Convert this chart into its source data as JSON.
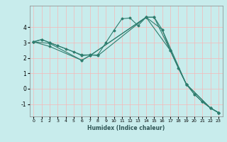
{
  "xlabel": "Humidex (Indice chaleur)",
  "ylabel": "",
  "bg_color": "#c8ecec",
  "line_color": "#2e7d6e",
  "grid_color": "#f5b8b8",
  "xlim": [
    -0.5,
    23.5
  ],
  "ylim": [
    -1.8,
    5.4
  ],
  "yticks": [
    -1,
    0,
    1,
    2,
    3,
    4
  ],
  "xticks": [
    0,
    1,
    2,
    3,
    4,
    5,
    6,
    7,
    8,
    9,
    10,
    11,
    12,
    13,
    14,
    15,
    16,
    17,
    18,
    19,
    20,
    21,
    22,
    23
  ],
  "lines": [
    {
      "x": [
        0,
        1,
        2,
        3,
        4,
        5,
        6,
        7,
        8,
        9,
        10,
        11,
        12,
        13,
        14,
        15,
        16,
        17,
        18,
        19,
        20,
        21,
        22,
        23
      ],
      "y": [
        3.05,
        3.2,
        3.0,
        2.8,
        2.6,
        2.4,
        2.15,
        2.2,
        2.2,
        3.0,
        3.8,
        4.55,
        4.6,
        4.1,
        4.65,
        4.65,
        3.85,
        2.5,
        1.35,
        0.3,
        -0.35,
        -0.85,
        -1.25,
        -1.55
      ]
    },
    {
      "x": [
        0,
        1,
        2,
        6,
        7,
        8,
        14,
        15,
        17,
        19,
        20,
        21,
        22,
        23
      ],
      "y": [
        3.05,
        3.2,
        3.0,
        2.2,
        2.2,
        2.15,
        4.65,
        4.65,
        2.5,
        0.3,
        -0.35,
        -0.85,
        -1.25,
        -1.55
      ]
    },
    {
      "x": [
        0,
        2,
        6,
        7,
        14,
        17,
        19,
        22,
        23
      ],
      "y": [
        3.05,
        2.95,
        1.85,
        2.15,
        4.65,
        2.5,
        0.3,
        -1.25,
        -1.55
      ]
    },
    {
      "x": [
        0,
        2,
        6,
        7,
        14,
        16,
        19,
        22,
        23
      ],
      "y": [
        3.05,
        2.75,
        1.85,
        2.15,
        4.65,
        3.85,
        0.3,
        -1.25,
        -1.55
      ]
    }
  ]
}
